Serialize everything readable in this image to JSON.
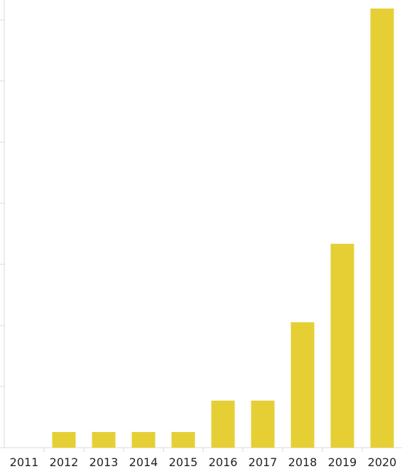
{
  "chart_data": {
    "type": "bar",
    "categories": [
      "2011",
      "2012",
      "2013",
      "2014",
      "2015",
      "2016",
      "2017",
      "2018",
      "2019",
      "2020"
    ],
    "values": [
      0,
      1,
      1,
      1,
      1,
      3,
      3,
      8,
      13,
      28
    ],
    "title": "",
    "xlabel": "",
    "ylabel": "",
    "ylim": [
      0,
      28
    ],
    "y_tick_count": 7,
    "y_tick_labels_visible": false,
    "bar_color": "#e5cf35",
    "grid": false,
    "legend": "none"
  }
}
